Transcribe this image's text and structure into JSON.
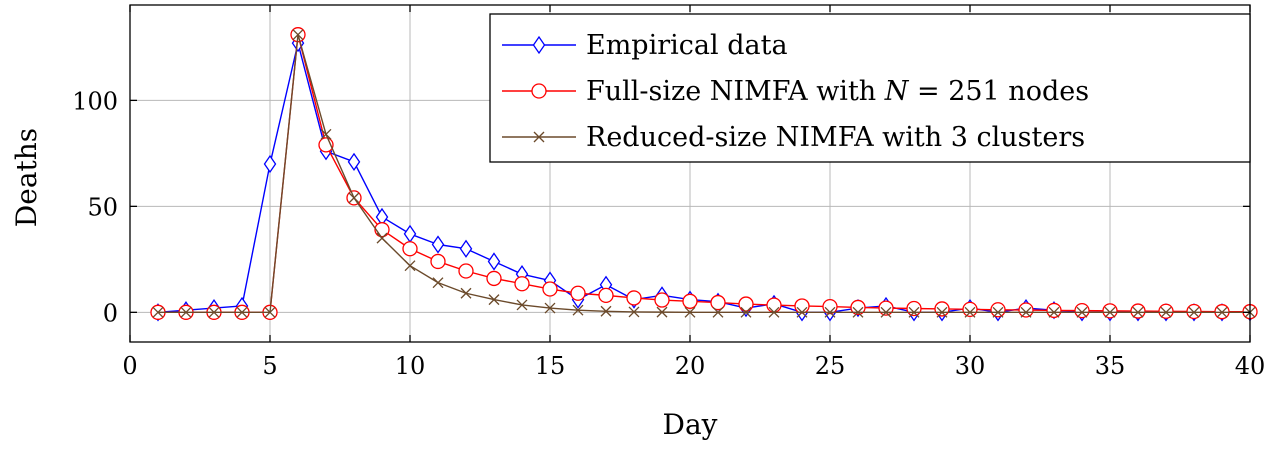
{
  "chart_data": {
    "type": "line",
    "title": "",
    "xlabel": "Day",
    "ylabel": "Deaths",
    "xlim": [
      0,
      40
    ],
    "ylim": [
      -14,
      145
    ],
    "xticks": [
      0,
      5,
      10,
      15,
      20,
      25,
      30,
      35,
      40
    ],
    "yticks": [
      0,
      50,
      100
    ],
    "grid": true,
    "legend_position": "top-right",
    "series": [
      {
        "name": "Empirical data",
        "color": "#0000ff",
        "marker": "diamond",
        "x": [
          1,
          2,
          3,
          4,
          5,
          6,
          7,
          8,
          9,
          10,
          11,
          12,
          13,
          14,
          15,
          16,
          17,
          18,
          19,
          20,
          21,
          22,
          23,
          24,
          25,
          26,
          27,
          28,
          29,
          30,
          31,
          32,
          33,
          34,
          35,
          36,
          37,
          38,
          39,
          40
        ],
        "y": [
          0,
          1,
          2,
          3,
          70,
          127,
          76,
          71,
          45,
          37,
          32,
          30,
          24,
          18,
          15,
          6,
          13,
          6,
          8,
          6,
          5,
          2,
          4,
          0,
          0,
          2,
          3,
          0,
          0,
          2,
          0,
          2,
          1,
          0,
          0,
          0,
          0,
          0,
          0,
          0
        ]
      },
      {
        "name_prefix": "Full-size NIMFA with ",
        "name_math": "N",
        "name_suffix": " = 251 nodes",
        "color": "#ff0000",
        "marker": "circle",
        "x": [
          1,
          2,
          3,
          4,
          5,
          6,
          7,
          8,
          9,
          10,
          11,
          12,
          13,
          14,
          15,
          16,
          17,
          18,
          19,
          20,
          21,
          22,
          23,
          24,
          25,
          26,
          27,
          28,
          29,
          30,
          31,
          32,
          33,
          34,
          35,
          36,
          37,
          38,
          39,
          40
        ],
        "y": [
          0,
          0,
          0,
          0,
          0,
          131,
          79,
          54,
          39,
          30,
          24,
          19.5,
          16,
          13.5,
          11,
          9,
          8,
          6.8,
          5.8,
          5.2,
          4.6,
          3.9,
          3.4,
          3,
          2.7,
          2.3,
          2,
          1.8,
          1.6,
          1.4,
          1.2,
          1.1,
          0.9,
          0.8,
          0.7,
          0.6,
          0.5,
          0.4,
          0.3,
          0.3
        ]
      },
      {
        "name": "Reduced-size NIMFA with 3 clusters",
        "color": "#6b4a2b",
        "marker": "cross",
        "x": [
          1,
          2,
          3,
          4,
          5,
          6,
          7,
          8,
          9,
          10,
          11,
          12,
          13,
          14,
          15,
          16,
          17,
          18,
          19,
          20,
          21,
          22,
          23,
          24,
          25,
          26,
          27,
          28,
          29,
          30,
          31,
          32,
          33,
          34,
          35,
          36,
          37,
          38,
          39,
          40
        ],
        "y": [
          0,
          0,
          0,
          0,
          0,
          131,
          84,
          54,
          35,
          22,
          14,
          9,
          6,
          3.5,
          2,
          1,
          0.5,
          0.2,
          0.1,
          0,
          0,
          0,
          0,
          0,
          0,
          0,
          0,
          0,
          0,
          0,
          0,
          0,
          0,
          0,
          0,
          0,
          0,
          0,
          0,
          0
        ]
      }
    ]
  }
}
